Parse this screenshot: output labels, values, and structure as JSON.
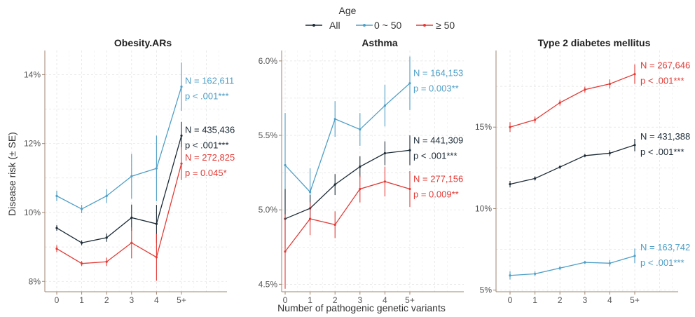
{
  "legend": {
    "title": "Age",
    "position": "top",
    "entries": [
      {
        "label": "All",
        "color": "#1c2b36"
      },
      {
        "label": "0 ~ 50",
        "color": "#4f9fc6"
      },
      {
        "label": "≥ 50",
        "color": "#e23b36"
      }
    ]
  },
  "shared_axes": {
    "xlabel": "Number of pathogenic genetic variants",
    "ylabel": "Disease risk (± SE)"
  },
  "chart_data": [
    {
      "type": "line",
      "title": "Obesity.ARs",
      "categories": [
        "0",
        "1",
        "2",
        "3",
        "4",
        "5+"
      ],
      "ylim": [
        7.7,
        14.7
      ],
      "yticks": [
        8,
        10,
        12,
        14
      ],
      "ytick_labels": [
        "8%",
        "10%",
        "12%",
        "14%"
      ],
      "grid": true,
      "series": [
        {
          "name": "0 ~ 50",
          "color": "#4f9fc6",
          "values": [
            10.48,
            10.1,
            10.48,
            11.05,
            11.28,
            13.65
          ],
          "se": [
            0.15,
            0.12,
            0.2,
            0.65,
            0.95,
            0.7
          ],
          "annotation": {
            "n": "N = 162,611",
            "p": "p < .001***"
          }
        },
        {
          "name": "All",
          "color": "#1c2b36",
          "values": [
            9.55,
            9.12,
            9.27,
            9.85,
            9.67,
            12.23
          ],
          "se": [
            0.08,
            0.07,
            0.12,
            0.38,
            0.55,
            0.4
          ],
          "annotation": {
            "n": "N = 435,436",
            "p": "p < .001***"
          }
        },
        {
          "name": "≥ 50",
          "color": "#e23b36",
          "values": [
            8.95,
            8.52,
            8.57,
            9.12,
            8.7,
            11.42
          ],
          "se": [
            0.1,
            0.07,
            0.12,
            0.45,
            0.68,
            0.48
          ],
          "annotation": {
            "n": "N = 272,825",
            "p": "p = 0.045*"
          }
        }
      ]
    },
    {
      "type": "line",
      "title": "Asthma",
      "categories": [
        "0",
        "1",
        "2",
        "3",
        "4",
        "5+"
      ],
      "ylim": [
        4.45,
        6.07
      ],
      "yticks": [
        4.5,
        5.0,
        5.5,
        6.0
      ],
      "ytick_labels": [
        "4.5%",
        "5.0%",
        "5.5%",
        "6.0%"
      ],
      "grid": true,
      "series": [
        {
          "name": "0 ~ 50",
          "color": "#4f9fc6",
          "values": [
            5.3,
            5.12,
            5.61,
            5.54,
            5.7,
            5.85
          ],
          "se": [
            0.35,
            0.16,
            0.12,
            0.11,
            0.14,
            0.18
          ],
          "annotation": {
            "n": "N = 164,153",
            "p": "p = 0.003**"
          }
        },
        {
          "name": "All",
          "color": "#1c2b36",
          "values": [
            4.94,
            5.01,
            5.17,
            5.29,
            5.38,
            5.4
          ],
          "se": [
            0.2,
            0.09,
            0.07,
            0.07,
            0.08,
            0.1
          ],
          "annotation": {
            "n": "N = 441,309",
            "p": "p < .001***"
          }
        },
        {
          "name": "≥ 50",
          "color": "#e23b36",
          "values": [
            4.72,
            4.94,
            4.9,
            5.14,
            5.19,
            5.14
          ],
          "se": [
            0.25,
            0.11,
            0.09,
            0.09,
            0.1,
            0.12
          ],
          "annotation": {
            "n": "N = 277,156",
            "p": "p = 0.009**"
          }
        }
      ]
    },
    {
      "type": "line",
      "title": "Type 2 diabetes mellitus",
      "categories": [
        "0",
        "1",
        "2",
        "3",
        "4",
        "5+"
      ],
      "ylim": [
        4.9,
        19.7
      ],
      "yticks": [
        5,
        10,
        15
      ],
      "ytick_labels": [
        "5%",
        "10%",
        "15%"
      ],
      "grid": true,
      "series": [
        {
          "name": "≥ 50",
          "color": "#e23b36",
          "values": [
            15.0,
            15.45,
            16.5,
            17.3,
            17.65,
            18.25
          ],
          "se": [
            0.3,
            0.2,
            0.18,
            0.18,
            0.28,
            0.6
          ],
          "annotation": {
            "n": "N = 267,646",
            "p": "p < .001***"
          }
        },
        {
          "name": "All",
          "color": "#1c2b36",
          "values": [
            11.5,
            11.85,
            12.55,
            13.25,
            13.4,
            13.9
          ],
          "se": [
            0.2,
            0.13,
            0.1,
            0.1,
            0.18,
            0.38
          ],
          "annotation": {
            "n": "N = 431,388",
            "p": "p < .001***"
          }
        },
        {
          "name": "0 ~ 50",
          "color": "#4f9fc6",
          "values": [
            5.9,
            6.0,
            6.35,
            6.7,
            6.65,
            7.1
          ],
          "se": [
            0.25,
            0.15,
            0.12,
            0.1,
            0.2,
            0.45
          ],
          "annotation": {
            "n": "N = 163,742",
            "p": "p < .001***"
          }
        }
      ]
    }
  ]
}
